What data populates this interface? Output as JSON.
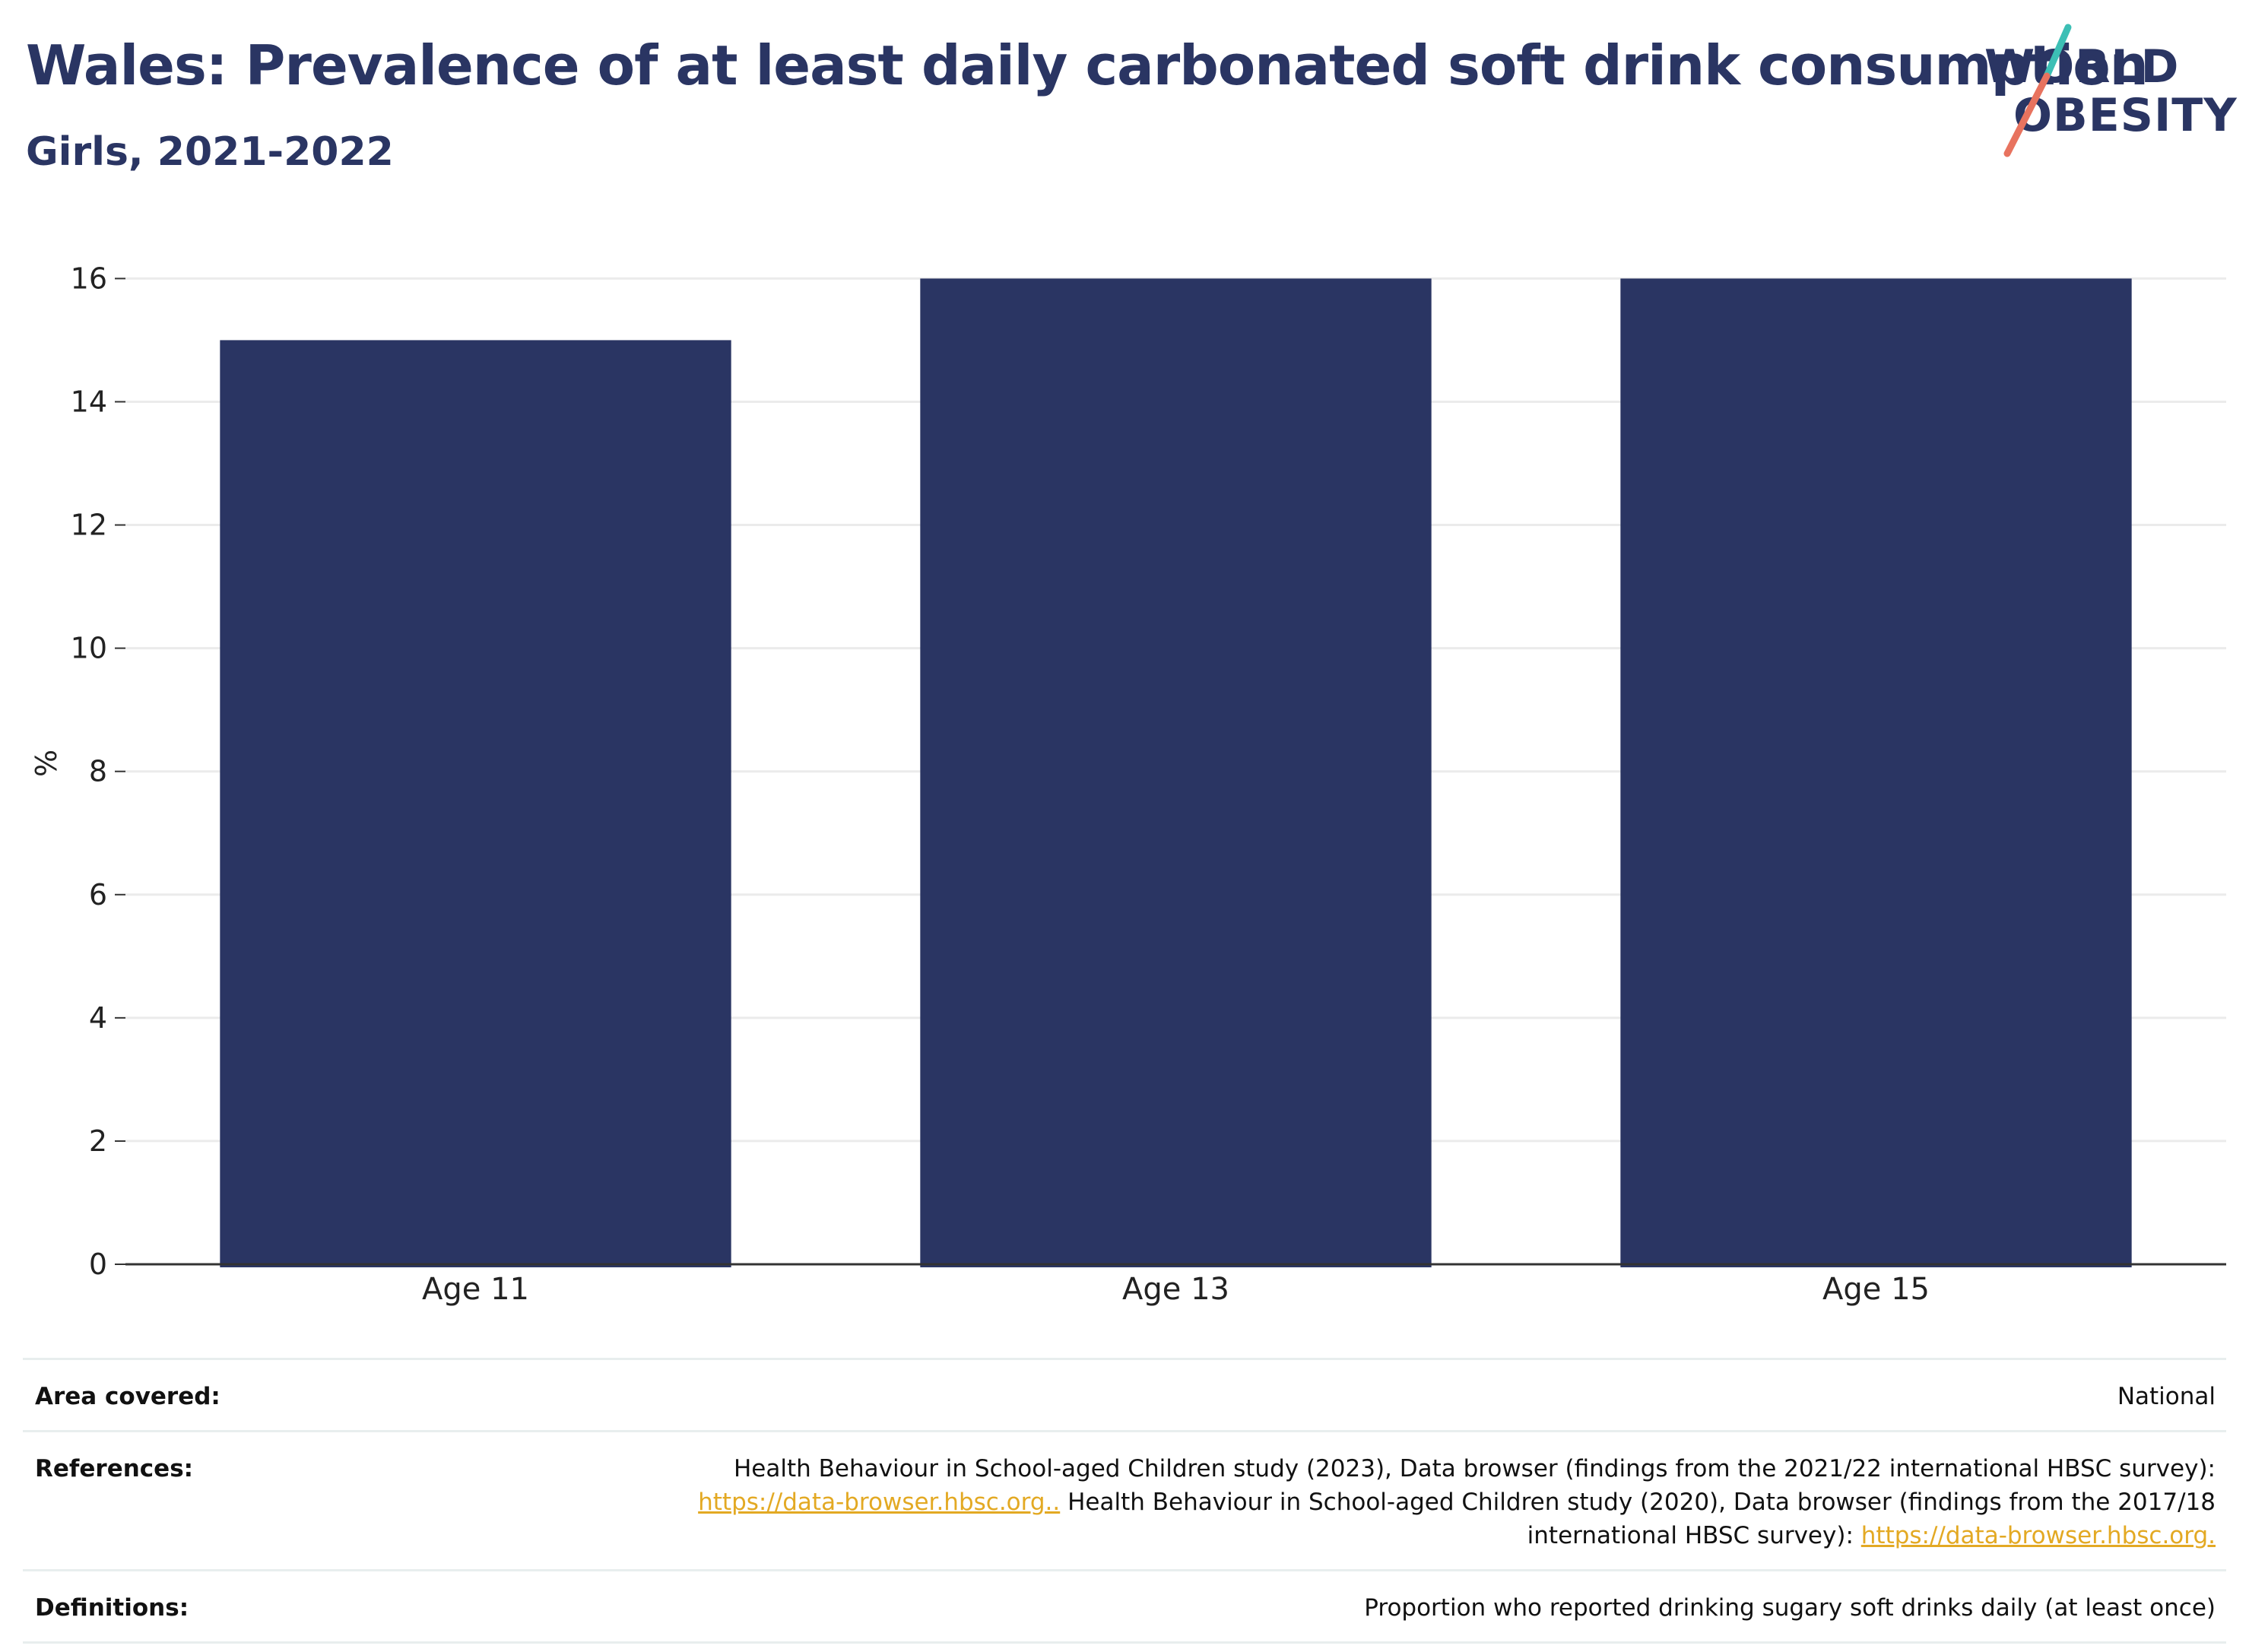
{
  "header": {
    "title": "Wales: Prevalence of at least daily carbonated soft drink consumption",
    "subtitle": "Girls, 2021-2022"
  },
  "logo": {
    "line1": "WORLD",
    "line2": "OBESITY",
    "slash_colors": [
      "#3cbfb5",
      "#e8735f"
    ]
  },
  "colors": {
    "bar": "#2a3563",
    "title": "#2a3563",
    "grid": "#ebebeb",
    "axis": "#333333",
    "link": "#e3a923"
  },
  "chart_data": {
    "type": "bar",
    "categories": [
      "Age 11",
      "Age 13",
      "Age 15"
    ],
    "values": [
      15,
      16,
      16
    ],
    "title": "Wales: Prevalence of at least daily carbonated soft drink consumption",
    "subtitle": "Girls, 2021-2022",
    "xlabel": "",
    "ylabel": "%",
    "ylim": [
      0,
      16
    ],
    "yticks": [
      0,
      2,
      4,
      6,
      8,
      10,
      12,
      14,
      16
    ],
    "grid": true,
    "legend": "none"
  },
  "info": {
    "area_label": "Area covered:",
    "area_value": "National",
    "references_label": "References:",
    "ref_text1": "Health Behaviour in School-aged Children study (2023), Data browser (findings from the 2021/22 international HBSC survey):",
    "ref_link1": "https://data-browser.hbsc.org..",
    "ref_text2": " Health Behaviour in School-aged Children study (2020), Data browser (findings from the 2017/18 international HBSC survey): ",
    "ref_link2": "https://data-browser.hbsc.org.",
    "definitions_label": "Definitions:",
    "definitions_value": "Proportion who reported drinking sugary soft drinks daily (at least once)"
  }
}
